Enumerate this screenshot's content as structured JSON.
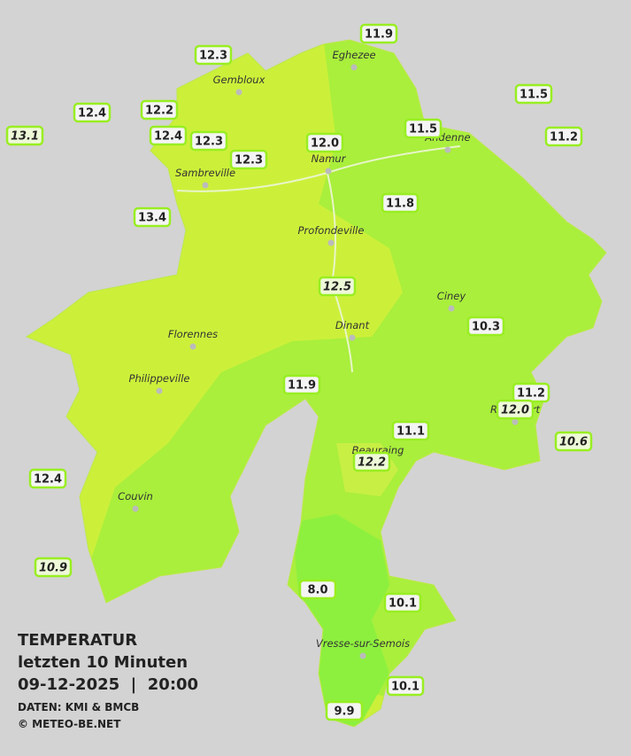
{
  "legend": {
    "title": "TEMPERATUR",
    "period": "letzten 10 Minuten",
    "datetime": "09-12-2025  |  20:00",
    "source": "DATEN: KMI & BMCB",
    "copyright": "© METEO-BE.NET"
  },
  "cities": [
    "Eghezee",
    "Gembloux",
    "Andenne",
    "Namur",
    "Sambreville",
    "Profondeville",
    "Ciney",
    "Dinant",
    "Florennes",
    "Philippeville",
    "Rochefort",
    "Beauraing",
    "Couvin",
    "Vresse-sur-Semois"
  ],
  "stations": [
    "12.3",
    "11.9",
    "12.4",
    "12.2",
    "11.5",
    "13.1",
    "12.4",
    "12.3",
    "12.0",
    "11.5",
    "11.2",
    "12.3",
    "11.8",
    "13.4",
    "12.5",
    "10.3",
    "11.9",
    "11.2",
    "12.0",
    "11.1",
    "10.6",
    "12.2",
    "12.4",
    "10.9",
    "8.0",
    "10.1",
    "10.1",
    "9.9"
  ]
}
